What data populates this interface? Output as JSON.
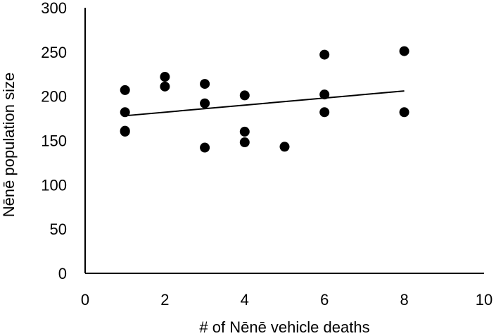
{
  "chart_data": {
    "type": "scatter",
    "title": "",
    "xlabel": "# of Nēnē vehicle deaths",
    "ylabel": "Nēnē population size",
    "xlim": [
      0,
      10
    ],
    "ylim": [
      0,
      300
    ],
    "x_ticks": [
      0,
      2,
      4,
      6,
      8,
      10
    ],
    "y_ticks": [
      0,
      50,
      100,
      150,
      200,
      250,
      300
    ],
    "grid": false,
    "legend": "none",
    "series": [
      {
        "color": "#000000",
        "points": [
          {
            "x": 1,
            "y": 207
          },
          {
            "x": 1,
            "y": 182
          },
          {
            "x": 1,
            "y": 161
          },
          {
            "x": 1,
            "y": 160
          },
          {
            "x": 2,
            "y": 222
          },
          {
            "x": 2,
            "y": 211
          },
          {
            "x": 3,
            "y": 214
          },
          {
            "x": 3,
            "y": 192
          },
          {
            "x": 3,
            "y": 142
          },
          {
            "x": 4,
            "y": 201
          },
          {
            "x": 4,
            "y": 160
          },
          {
            "x": 4,
            "y": 148
          },
          {
            "x": 5,
            "y": 143
          },
          {
            "x": 6,
            "y": 247
          },
          {
            "x": 6,
            "y": 202
          },
          {
            "x": 6,
            "y": 182
          },
          {
            "x": 8,
            "y": 251
          },
          {
            "x": 8,
            "y": 182
          }
        ]
      }
    ],
    "trendline": {
      "type": "linear",
      "x_start": 1,
      "y_start": 178,
      "x_end": 8,
      "y_end": 206,
      "color": "#000000"
    }
  }
}
